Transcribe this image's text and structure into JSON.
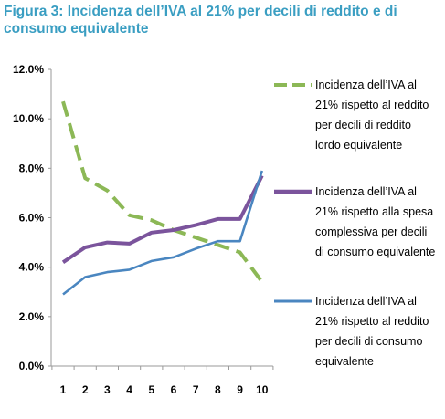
{
  "figure": {
    "title": "Figura 3: Incidenza dell’IVA al 21% per decili di reddito e di consumo equivalente"
  },
  "chart_data": {
    "type": "line",
    "title": "Figura 3: Incidenza dell’IVA al 21% per decili di reddito e di consumo equivalente",
    "xlabel": "",
    "ylabel": "",
    "x": [
      1,
      2,
      3,
      4,
      5,
      6,
      7,
      8,
      9,
      10
    ],
    "x_tick_labels": [
      "1",
      "2",
      "3",
      "4",
      "5",
      "6",
      "7",
      "8",
      "9",
      "10"
    ],
    "ylim": [
      0,
      12
    ],
    "y_ticks": [
      0,
      2,
      4,
      6,
      8,
      10,
      12
    ],
    "y_tick_labels": [
      "0.0%",
      "2.0%",
      "4.0%",
      "6.0%",
      "8.0%",
      "10.0%",
      "12.0%"
    ],
    "grid": false,
    "legend_position": "right",
    "series": [
      {
        "name": "Incidenza dell’IVA al 21% rispetto al reddito per decili di reddito lordo equivalente",
        "legend_lines": [
          "Incidenza dell’IVA al",
          "21% rispetto al reddito",
          "per decili di reddito",
          "lordo equivalente"
        ],
        "color": "#8cb856",
        "style": "dashed",
        "values": [
          10.7,
          7.6,
          7.1,
          6.1,
          5.9,
          5.5,
          5.2,
          4.9,
          4.6,
          3.4
        ]
      },
      {
        "name": "Incidenza dell’IVA al 21% rispetto alla spesa complessiva per decili di consumo equivalente",
        "legend_lines": [
          "Incidenza dell’IVA al",
          "21% rispetto alla spesa",
          "complessiva per decili",
          "di consumo equivalente"
        ],
        "color": "#7b549c",
        "style": "solid",
        "values": [
          4.2,
          4.8,
          5.0,
          4.95,
          5.4,
          5.5,
          5.7,
          5.95,
          5.95,
          7.7
        ]
      },
      {
        "name": "Incidenza dell’IVA al 21% rispetto al reddito per decili di consumo equivalente",
        "legend_lines": [
          "Incidenza dell’IVA al",
          "21% rispetto al reddito",
          "per decili di consumo",
          "equivalente"
        ],
        "color": "#4a86c0",
        "style": "solid",
        "values": [
          2.9,
          3.6,
          3.8,
          3.9,
          4.25,
          4.4,
          4.75,
          5.05,
          5.05,
          7.9
        ]
      }
    ]
  }
}
